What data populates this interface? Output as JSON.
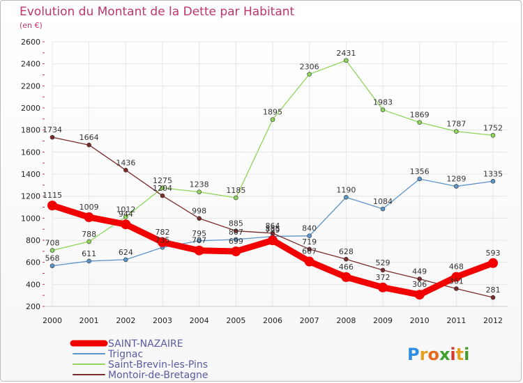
{
  "header": {
    "title": "Evolution du Montant de la Dette par Habitant",
    "subtitle": "(en €)"
  },
  "logo": {
    "letters": [
      "P",
      "r",
      "o",
      "x",
      "i",
      "t",
      "i"
    ],
    "colors": [
      "#2f8ee0",
      "#e2a11f",
      "#e86a1c",
      "#3f9e2c",
      "#d9362c",
      "#e2a11f",
      "#3f9e2c"
    ]
  },
  "colors": {
    "title": "#c0346b",
    "grid": "#e6e6e6",
    "axis_ticks": "#c0346b"
  },
  "chart_data": {
    "type": "line",
    "title": "Evolution du Montant de la Dette par Habitant",
    "subtitle": "(en €)",
    "xlabel": "",
    "ylabel": "",
    "x": [
      "2000",
      "2001",
      "2002",
      "2003",
      "2004",
      "2005",
      "2006",
      "2007",
      "2008",
      "2009",
      "2010",
      "2011",
      "2012"
    ],
    "ylim": [
      200,
      2600
    ],
    "yticks": [
      200,
      400,
      600,
      800,
      1000,
      1200,
      1400,
      1600,
      1800,
      2000,
      2200,
      2400,
      2600
    ],
    "grid": true,
    "legend_position": "bottom-left",
    "series": [
      {
        "name": "SAINT-NAZAIRE",
        "color": "#f20000",
        "width": 9,
        "marker": 7,
        "values": [
          1115,
          1009,
          944,
          782,
          707,
          699,
          799,
          607,
          466,
          372,
          306,
          468,
          593
        ],
        "labels": [
          "1115",
          "1009",
          "944",
          "782",
          "707",
          "699",
          "799",
          "607",
          "466",
          "372",
          "306",
          "468",
          "593"
        ]
      },
      {
        "name": "Trignac",
        "color": "#5b94c8",
        "width": 1.3,
        "marker": 3,
        "values": [
          568,
          611,
          624,
          735,
          795,
          807,
          835,
          840,
          1190,
          1084,
          1356,
          1289,
          1335
        ],
        "labels": [
          "568",
          "611",
          "624",
          "735",
          "795",
          "807",
          "835",
          "840",
          "1190",
          "1084",
          "1356",
          "1289",
          "1335"
        ]
      },
      {
        "name": "Saint-Brevin-les-Pins",
        "color": "#8fd55a",
        "width": 1.3,
        "marker": 3,
        "values": [
          708,
          788,
          1012,
          1275,
          1238,
          1185,
          1895,
          2306,
          2431,
          1983,
          1869,
          1787,
          1752
        ],
        "labels": [
          "708",
          "788",
          "1012",
          "1275",
          "1238",
          "1185",
          "1895",
          "2306",
          "2431",
          "1983",
          "1869",
          "1787",
          "1752"
        ]
      },
      {
        "name": "Montoir-de-Bretagne",
        "color": "#7b2a2a",
        "width": 1.3,
        "marker": 3,
        "values": [
          1734,
          1664,
          1436,
          1204,
          998,
          885,
          864,
          719,
          628,
          529,
          449,
          361,
          281
        ],
        "labels": [
          "1734",
          "1664",
          "1436",
          "1204",
          "998",
          "885",
          "864",
          "719",
          "628",
          "529",
          "449",
          "361",
          "281"
        ]
      }
    ]
  }
}
